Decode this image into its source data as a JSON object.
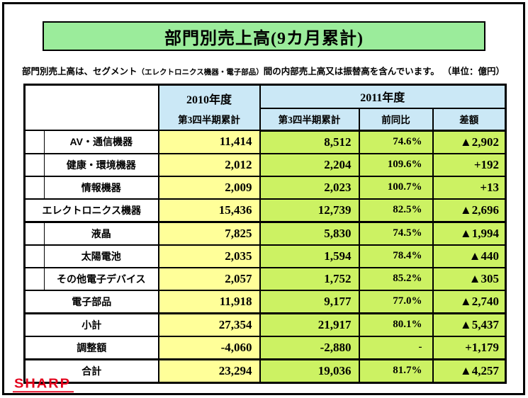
{
  "title": "部門別売上高(9カ月累計)",
  "note": {
    "pre": "部門別売上高は、セグメント",
    "small": "（エレクトロニクス機器・電子部品）",
    "post": "間の内部売上高又は振替高を含んでいます。"
  },
  "unit": "（単位：億円）",
  "logo": "SHARP",
  "colors": {
    "title_green": "#9BEC9B",
    "header_blue": "#CBE8F6",
    "col2010_yellow": "#FFFF99",
    "col2011_green": "#CCF263",
    "logo_red": "#E3001B"
  },
  "table": {
    "header": {
      "fy2010": "2010年度",
      "fy2010_sub": "第3四半期累計",
      "fy2011": "2011年度",
      "q3": "第3四半期累計",
      "yoy": "前同比",
      "diff": "差額"
    },
    "rows": [
      {
        "label": "AV・通信機器",
        "type": "sub",
        "fy2010": "11,414",
        "fy2011": "8,512",
        "yoy": "74.6%",
        "diff": "▲2,902",
        "thickBottom": false
      },
      {
        "label": "健康・環境機器",
        "type": "sub",
        "fy2010": "2,012",
        "fy2011": "2,204",
        "yoy": "109.6%",
        "diff": "+192",
        "thickBottom": false
      },
      {
        "label": "情報機器",
        "type": "sub",
        "fy2010": "2,009",
        "fy2011": "2,023",
        "yoy": "100.7%",
        "diff": "+13",
        "thickBottom": false
      },
      {
        "label": "エレクトロニクス機器",
        "type": "group",
        "fy2010": "15,436",
        "fy2011": "12,739",
        "yoy": "82.5%",
        "diff": "▲2,696",
        "thickBottom": true
      },
      {
        "label": "液晶",
        "type": "sub",
        "fy2010": "7,825",
        "fy2011": "5,830",
        "yoy": "74.5%",
        "diff": "▲1,994",
        "thickBottom": false
      },
      {
        "label": "太陽電池",
        "type": "sub",
        "fy2010": "2,035",
        "fy2011": "1,594",
        "yoy": "78.4%",
        "diff": "▲440",
        "thickBottom": false
      },
      {
        "label": "その他電子デバイス",
        "type": "sub",
        "fy2010": "2,057",
        "fy2011": "1,752",
        "yoy": "85.2%",
        "diff": "▲305",
        "thickBottom": false
      },
      {
        "label": "電子部品",
        "type": "group",
        "fy2010": "11,918",
        "fy2011": "9,177",
        "yoy": "77.0%",
        "diff": "▲2,740",
        "thickBottom": true
      },
      {
        "label": "小計",
        "type": "total",
        "fy2010": "27,354",
        "fy2011": "21,917",
        "yoy": "80.1%",
        "diff": "▲5,437",
        "thickBottom": false
      },
      {
        "label": "調整額",
        "type": "total",
        "fy2010": "-4,060",
        "fy2011": "-2,880",
        "yoy": "-",
        "diff": "+1,179",
        "thickBottom": true
      },
      {
        "label": "合計",
        "type": "total",
        "fy2010": "23,294",
        "fy2011": "19,036",
        "yoy": "81.7%",
        "diff": "▲4,257",
        "thickBottom": false
      }
    ]
  }
}
